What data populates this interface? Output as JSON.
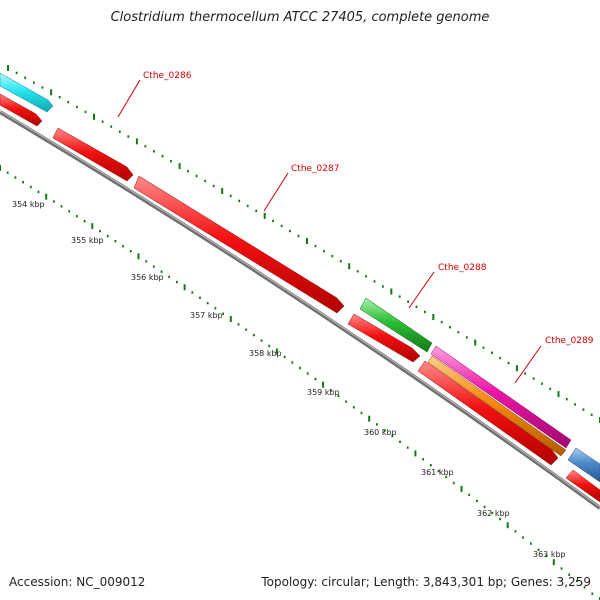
{
  "title": "Clostridium thermocellum ATCC 27405, complete genome",
  "footer": {
    "accession": "Accession: NC_009012",
    "summary": "Topology: circular; Length: 3,843,301 bp; Genes: 3,259"
  },
  "gene_labels": [
    "Cthe_0286",
    "Cthe_0287",
    "Cthe_0288",
    "Cthe_0289"
  ],
  "kbp_labels": [
    "354 kbp",
    "355 kbp",
    "356 kbp",
    "357 kbp",
    "358 kbp",
    "359 kbp",
    "360 kbp",
    "361 kbp",
    "362 kbp",
    "363 kbp"
  ],
  "colors": {
    "cyan": "#29e5f0",
    "red": "#f21212",
    "green": "#2bbd35",
    "magenta": "#ea16a6",
    "orange": "#f58a10",
    "blue": "#4a88c8",
    "ticks": "#117a11",
    "backbone": "#7a7a7a"
  }
}
